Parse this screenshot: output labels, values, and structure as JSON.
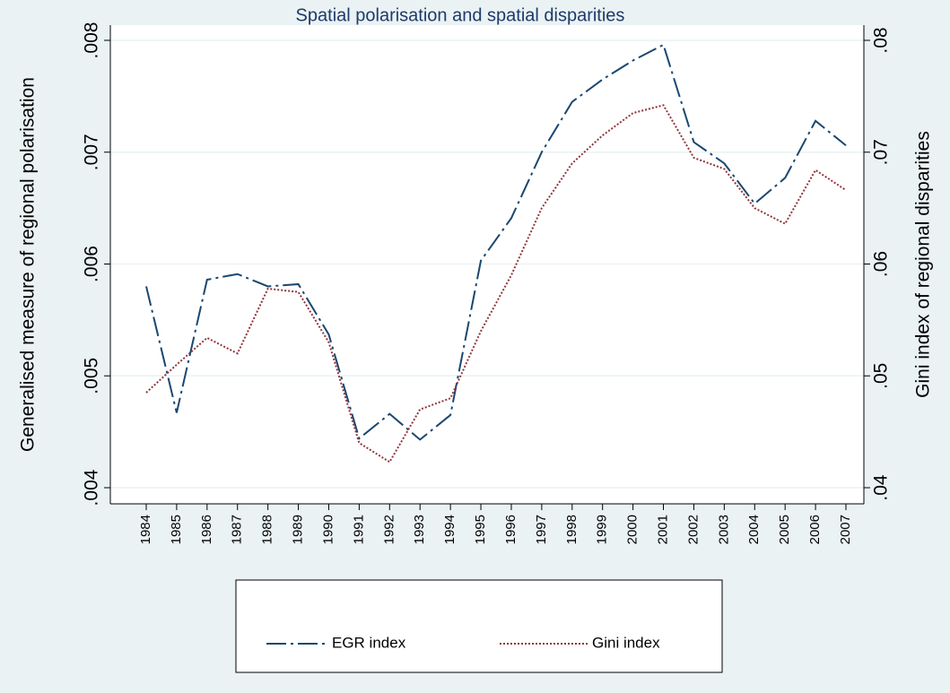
{
  "chart_data": {
    "type": "line",
    "title": "Spatial polarisation and spatial disparities",
    "y_label": "Generalised measure of regional polarisation",
    "y2_label": "Gini index of regional disparities",
    "categories": [
      "1984",
      "1985",
      "1986",
      "1987",
      "1988",
      "1989",
      "1990",
      "1991",
      "1992",
      "1993",
      "1994",
      "1995",
      "1996",
      "1997",
      "1998",
      "1999",
      "2000",
      "2001",
      "2002",
      "2003",
      "2004",
      "2005",
      "2006",
      "2007"
    ],
    "series": [
      {
        "name": "EGR index",
        "color": "#1a476f",
        "axis": "y",
        "values": [
          0.0058,
          0.00467,
          0.00586,
          0.00591,
          0.0058,
          0.00582,
          0.00537,
          0.00444,
          0.00466,
          0.00443,
          0.00465,
          0.00603,
          0.00641,
          0.007,
          0.00745,
          0.00765,
          0.00782,
          0.00796,
          0.00709,
          0.0069,
          0.00654,
          0.00677,
          0.00728,
          0.00706
        ]
      },
      {
        "name": "Gini index",
        "color": "#90353b",
        "axis": "y2",
        "values": [
          0.0485,
          0.051,
          0.0534,
          0.052,
          0.0578,
          0.0575,
          0.053,
          0.044,
          0.0423,
          0.047,
          0.048,
          0.054,
          0.059,
          0.065,
          0.069,
          0.0715,
          0.0735,
          0.0742,
          0.0695,
          0.0685,
          0.065,
          0.0636,
          0.0684,
          0.0666
        ]
      }
    ],
    "ylim": [
      0.004,
      0.008
    ],
    "yticks": [
      {
        "value": 0.004,
        "label": ".004"
      },
      {
        "value": 0.005,
        "label": ".005"
      },
      {
        "value": 0.006,
        "label": ".006"
      },
      {
        "value": 0.007,
        "label": ".007"
      },
      {
        "value": 0.008,
        "label": ".008"
      }
    ],
    "y2lim": [
      0.04,
      0.08
    ],
    "y2ticks": [
      {
        "value": 0.04,
        "label": ".04"
      },
      {
        "value": 0.05,
        "label": ".05"
      },
      {
        "value": 0.06,
        "label": ".06"
      },
      {
        "value": 0.07,
        "label": ".07"
      },
      {
        "value": 0.08,
        "label": ".08"
      }
    ],
    "grid": true
  }
}
